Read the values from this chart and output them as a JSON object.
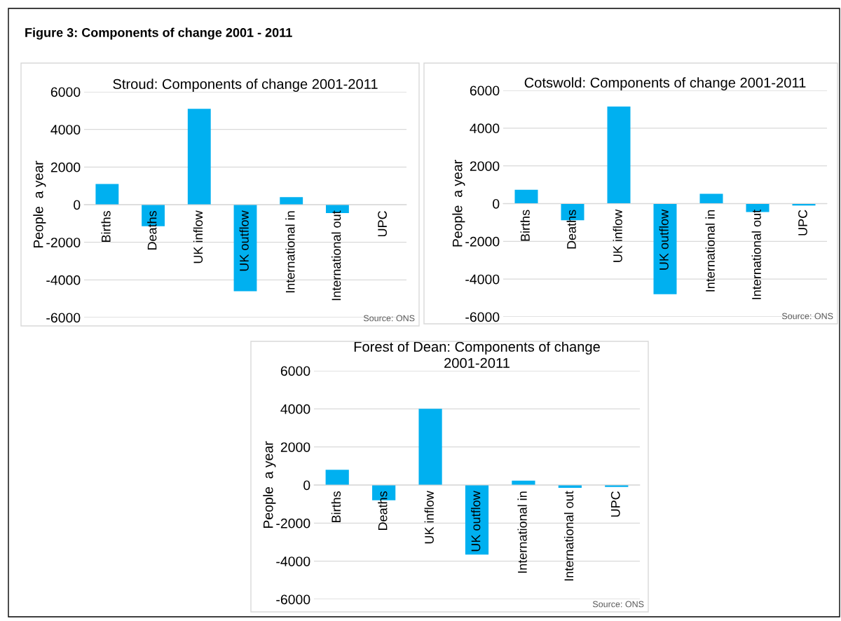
{
  "chart_data": [
    {
      "type": "bar",
      "title": "Stroud: Components of change 2001-2011",
      "ylabel": "People  a year",
      "categories": [
        "Births",
        "Deaths",
        "UK inflow",
        "UK outflow",
        "International in",
        "International out",
        "UPC"
      ],
      "values": [
        1100,
        -1150,
        5100,
        -4600,
        400,
        -450,
        0
      ],
      "color": "#00b0f0",
      "ylim": [
        -6000,
        6000
      ],
      "yticks": [
        -6000,
        -4000,
        -2000,
        0,
        2000,
        4000,
        6000
      ],
      "grid": "y",
      "annotations": [
        "Figure 3: Components of change 2001 - 2011",
        "Source: ONS"
      ]
    },
    {
      "type": "bar",
      "title": "Cotswold: Components of change 2001-2011",
      "ylabel": "People  a year",
      "categories": [
        "Births",
        "Deaths",
        "UK inflow",
        "UK outflow",
        "International in",
        "International out",
        "UPC"
      ],
      "values": [
        730,
        -880,
        5150,
        -4800,
        520,
        -450,
        -100
      ],
      "color": "#00b0f0",
      "ylim": [
        -6000,
        6000
      ],
      "yticks": [
        -6000,
        -4000,
        -2000,
        0,
        2000,
        4000,
        6000
      ],
      "grid": "y",
      "annotations": [
        "Source: ONS"
      ]
    },
    {
      "type": "bar",
      "title": "Forest of Dean: Components of change\n2001-2011",
      "ylabel": "People  a year",
      "categories": [
        "Births",
        "Deaths",
        "UK inflow",
        "UK outflow",
        "International in",
        "International out",
        "UPC"
      ],
      "values": [
        800,
        -800,
        4000,
        -3650,
        230,
        -150,
        -100
      ],
      "color": "#00b0f0",
      "ylim": [
        -6000,
        6000
      ],
      "yticks": [
        -6000,
        -4000,
        -2000,
        0,
        2000,
        4000,
        6000
      ],
      "grid": "y",
      "annotations": [
        "Source: ONS"
      ]
    }
  ]
}
